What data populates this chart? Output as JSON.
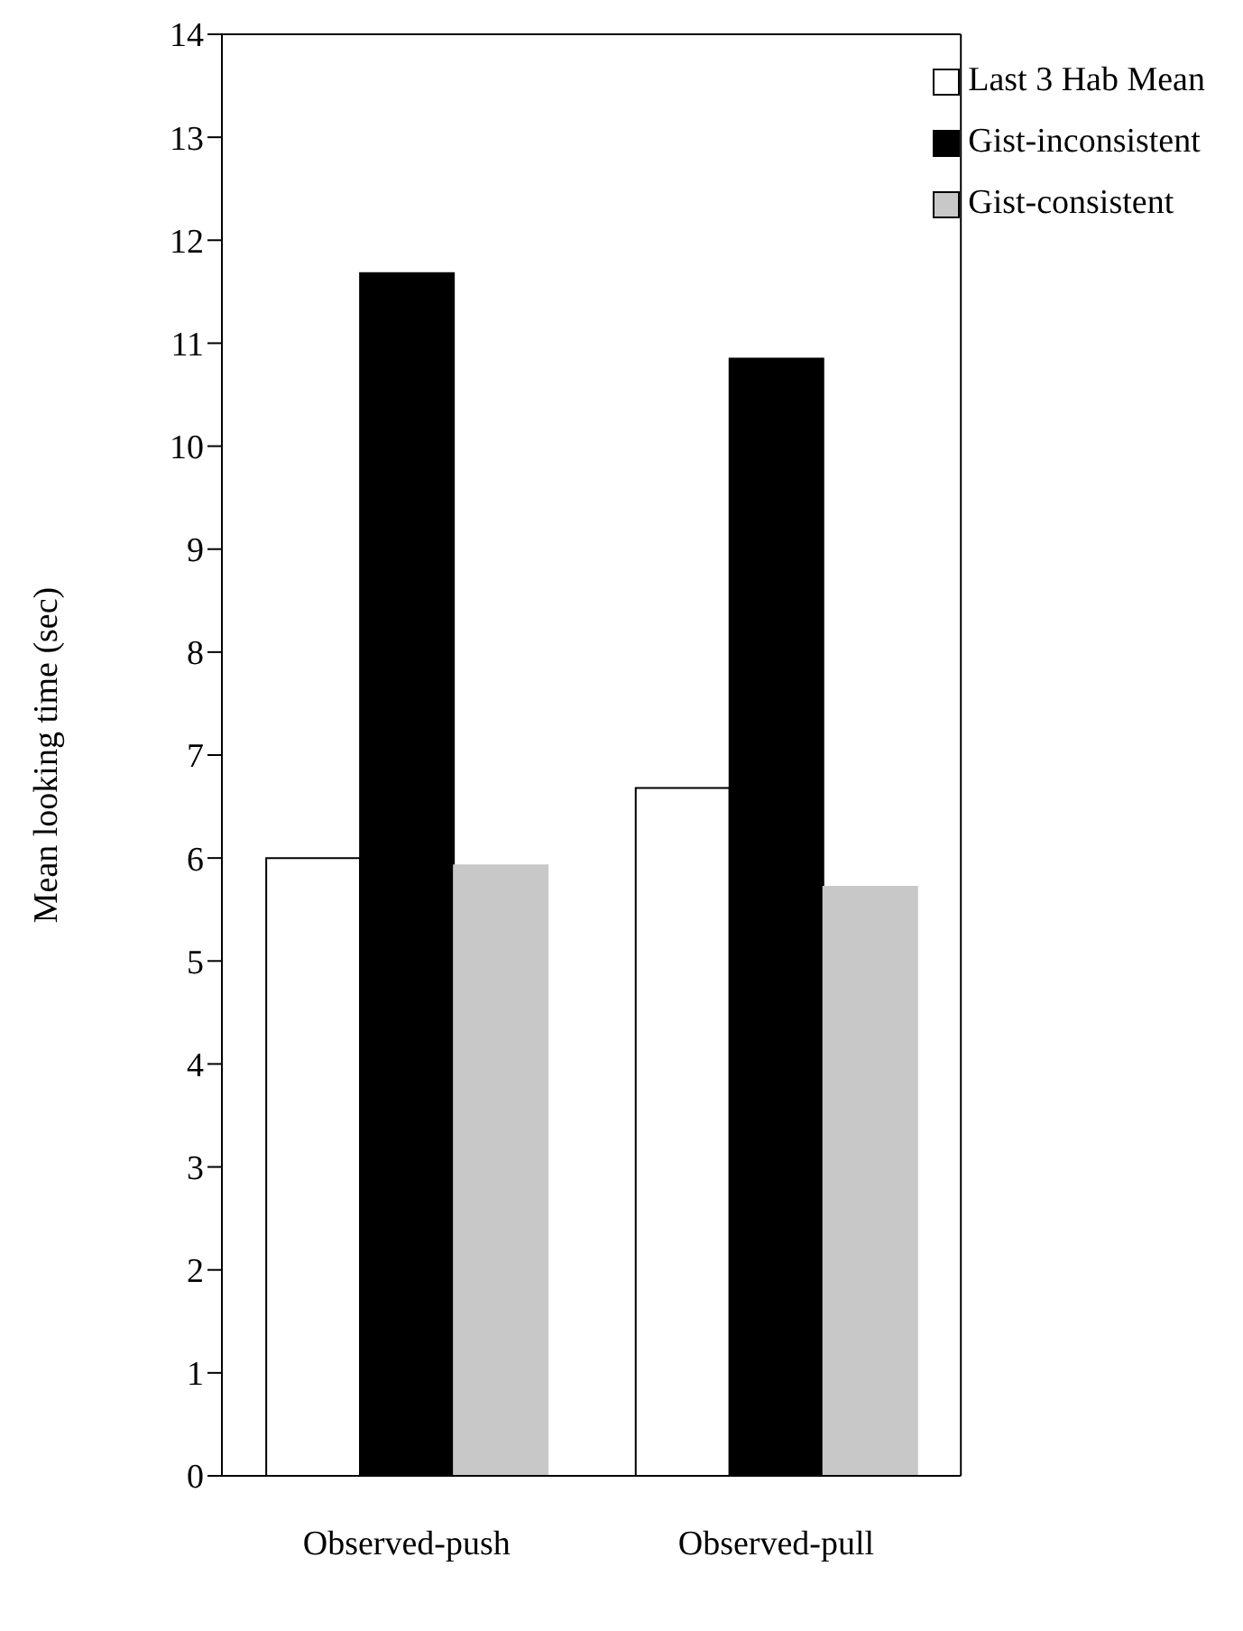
{
  "chart_data": {
    "type": "bar",
    "ylabel": "Mean looking time (sec)",
    "categories": [
      "Observed-push",
      "Observed-pull"
    ],
    "series": [
      {
        "name": "Last 3 Hab Mean",
        "color": "#ffffff",
        "values": [
          6.0,
          6.68
        ]
      },
      {
        "name": "Gist-inconsistent",
        "color": "#000000",
        "values": [
          11.68,
          10.85
        ]
      },
      {
        "name": "Gist-consistent",
        "color": "#c8c8c8",
        "values": [
          5.93,
          5.72
        ]
      }
    ],
    "ylim": [
      0,
      14
    ],
    "yticks": [
      0,
      1,
      2,
      3,
      4,
      5,
      6,
      7,
      8,
      9,
      10,
      11,
      12,
      13,
      14
    ],
    "grid": false,
    "legend": "top right"
  }
}
